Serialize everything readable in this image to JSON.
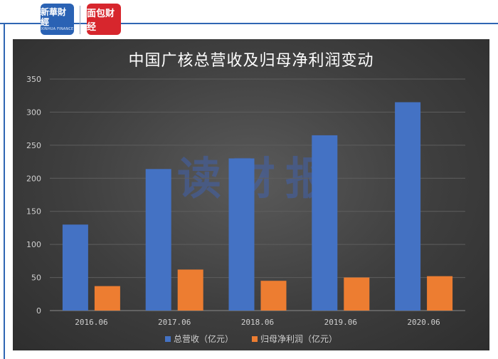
{
  "logos": {
    "xinhua_main": "新華財經",
    "xinhua_sub": "XINHUA FINANCE",
    "mian_main": "面包财经"
  },
  "watermark": "读财报",
  "colors": {
    "revenue": "#4472c4",
    "net_profit": "#ed7d31",
    "frame": "#2f66b3"
  },
  "chart_data": {
    "type": "bar",
    "title": "中国广核总营收及归母净利润变动",
    "categories": [
      "2016.06",
      "2017.06",
      "2018.06",
      "2019.06",
      "2020.06"
    ],
    "series": [
      {
        "name": "总营收（亿元）",
        "values": [
          130,
          214,
          230,
          265,
          315
        ]
      },
      {
        "name": "归母净利润（亿元）",
        "values": [
          37,
          62,
          45,
          50,
          52
        ]
      }
    ],
    "xlabel": "",
    "ylabel": "",
    "ylim": [
      0,
      350
    ],
    "yticks": [
      0,
      50,
      100,
      150,
      200,
      250,
      300,
      350
    ],
    "grid": true,
    "legend_position": "bottom"
  }
}
